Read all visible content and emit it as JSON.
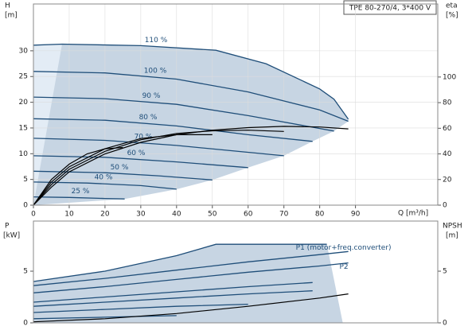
{
  "chart_data": [
    {
      "type": "line",
      "title": "TPE 80-270/4, 3*400 V",
      "ylabel": [
        "H",
        "[m]"
      ],
      "y2label": [
        "eta",
        "[%]"
      ],
      "xlabel": "Q [m³/h]",
      "xlim": [
        0,
        113
      ],
      "xticks": [
        0,
        10,
        20,
        30,
        40,
        50,
        60,
        70,
        80,
        90
      ],
      "ylim": [
        0,
        39.1
      ],
      "yticks": [
        0,
        5,
        10,
        15,
        20,
        25,
        30
      ],
      "y2lim": [
        0,
        157
      ],
      "y2ticks": [
        0,
        20,
        40,
        60,
        80,
        100
      ],
      "grid": true,
      "series": [
        {
          "name": "110 %",
          "color": "#1f4e79",
          "x": [
            0,
            8,
            30,
            51,
            65,
            80,
            84,
            88
          ],
          "values": [
            31.1,
            31.3,
            31.0,
            30.1,
            27.5,
            22.6,
            20.6,
            16.7
          ]
        },
        {
          "name": "100 %",
          "color": "#1f4e79",
          "x": [
            0,
            20,
            40,
            60,
            80,
            88
          ],
          "values": [
            26,
            25.7,
            24.5,
            22,
            18.5,
            16.3
          ]
        },
        {
          "name": "90 %",
          "color": "#1f4e79",
          "x": [
            0,
            20,
            40,
            60,
            84
          ],
          "values": [
            21,
            20.7,
            19.6,
            17.4,
            14.4
          ]
        },
        {
          "name": "80 %",
          "color": "#1f4e79",
          "x": [
            0,
            20,
            40,
            60,
            78
          ],
          "values": [
            16.8,
            16.5,
            15.4,
            13.7,
            12.4
          ]
        },
        {
          "name": "70 %",
          "color": "#1f4e79",
          "x": [
            0,
            20,
            40,
            55,
            70
          ],
          "values": [
            13,
            12.6,
            11.6,
            10.6,
            9.6
          ]
        },
        {
          "name": "60 %",
          "color": "#1f4e79",
          "x": [
            0,
            20,
            40,
            60
          ],
          "values": [
            9.6,
            9.3,
            8.4,
            7.3
          ]
        },
        {
          "name": "50 %",
          "color": "#1f4e79",
          "x": [
            0,
            20,
            35,
            50
          ],
          "values": [
            6.6,
            6.3,
            5.7,
            4.9
          ]
        },
        {
          "name": "40 %",
          "color": "#1f4e79",
          "x": [
            0,
            15,
            30,
            40
          ],
          "values": [
            4.5,
            4.3,
            3.8,
            3.1
          ]
        },
        {
          "name": "25 %",
          "color": "#1f4e79",
          "x": [
            0,
            10,
            20,
            25.5
          ],
          "values": [
            1.6,
            1.5,
            1.3,
            1.2
          ]
        },
        {
          "axis": "y2",
          "color": "#000000",
          "x": [
            0,
            5,
            10,
            20,
            30,
            40,
            50,
            60,
            70,
            80,
            88
          ],
          "values": [
            0,
            14,
            26,
            40,
            49,
            55,
            58.5,
            60.5,
            61.5,
            61,
            59.5
          ]
        },
        {
          "axis": "y2",
          "color": "#000000",
          "x": [
            0,
            5,
            10,
            20,
            30,
            40,
            50,
            60,
            70
          ],
          "values": [
            0,
            16,
            28,
            42,
            51,
            56,
            58,
            58.5,
            57.5
          ]
        },
        {
          "axis": "y2",
          "color": "#000000",
          "x": [
            0,
            5,
            10,
            20,
            30,
            40,
            50
          ],
          "values": [
            0,
            18,
            30,
            44,
            52,
            55,
            55
          ]
        },
        {
          "axis": "y2",
          "color": "#000000",
          "x": [
            0,
            5,
            10,
            15,
            20,
            25
          ],
          "values": [
            0,
            20,
            32,
            40,
            44,
            45
          ]
        }
      ]
    },
    {
      "type": "line",
      "ylabel": [
        "P",
        "[kW]"
      ],
      "y2label": [
        "NPSH",
        "[m]"
      ],
      "xlim": [
        0,
        113
      ],
      "ylim": [
        0,
        9.85
      ],
      "yticks": [
        0,
        5
      ],
      "y2lim": [
        0,
        9.85
      ],
      "y2ticks": [
        0,
        5
      ],
      "series": [
        {
          "color": "#1f4e79",
          "x": [
            0,
            20,
            40,
            51,
            70,
            82
          ],
          "values": [
            4.0,
            5.0,
            6.5,
            7.6,
            7.6,
            7.6
          ]
        },
        {
          "name": "P1 (motor+freq.converter)",
          "color": "#1f4e79",
          "x": [
            0,
            20,
            40,
            60,
            80,
            88
          ],
          "values": [
            3.6,
            4.3,
            5.1,
            5.9,
            6.6,
            6.9
          ]
        },
        {
          "name": "P2",
          "color": "#1f4e79",
          "x": [
            0,
            20,
            40,
            60,
            80,
            88
          ],
          "values": [
            2.9,
            3.5,
            4.2,
            4.9,
            5.5,
            5.8
          ]
        },
        {
          "color": "#1f4e79",
          "x": [
            0,
            20,
            40,
            60,
            78
          ],
          "values": [
            2.0,
            2.5,
            3.0,
            3.5,
            3.9
          ]
        },
        {
          "color": "#1f4e79",
          "x": [
            0,
            20,
            40,
            60,
            78
          ],
          "values": [
            1.6,
            2.0,
            2.4,
            2.8,
            3.1
          ]
        },
        {
          "color": "#1f4e79",
          "x": [
            0,
            20,
            40,
            60
          ],
          "values": [
            1.0,
            1.3,
            1.6,
            1.8
          ]
        },
        {
          "color": "#1f4e79",
          "x": [
            0,
            20,
            40
          ],
          "values": [
            0.4,
            0.55,
            0.7
          ]
        },
        {
          "axis": "y2",
          "color": "#000000",
          "x": [
            0,
            20,
            40,
            60,
            80,
            88
          ],
          "values": [
            0.1,
            0.4,
            0.9,
            1.6,
            2.4,
            2.8
          ]
        }
      ]
    }
  ]
}
